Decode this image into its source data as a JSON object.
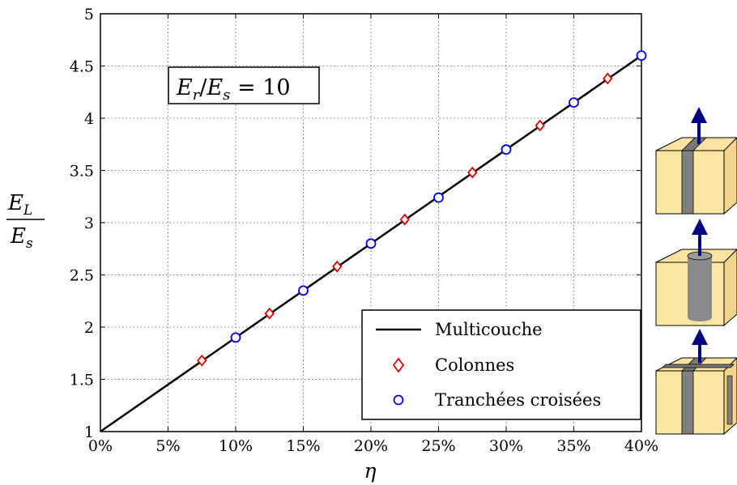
{
  "chart_data": {
    "type": "line",
    "x_tick_labels": [
      "0%",
      "5%",
      "10%",
      "15%",
      "20%",
      "25%",
      "30%",
      "35%",
      "40%"
    ],
    "x_ticks": [
      0,
      5,
      10,
      15,
      20,
      25,
      30,
      35,
      40
    ],
    "y_tick_labels": [
      "1",
      "1.5",
      "2",
      "2.5",
      "3",
      "3.5",
      "4",
      "4.5",
      "5"
    ],
    "y_ticks": [
      1,
      1.5,
      2,
      2.5,
      3,
      3.5,
      4,
      4.5,
      5
    ],
    "xlim": [
      0,
      40
    ],
    "ylim": [
      1,
      5
    ],
    "grid": true,
    "xlabel": "η",
    "ylabel": {
      "numerator": "E",
      "numerator_sub": "L",
      "denominator": "E",
      "denominator_sub": "s"
    },
    "annotation": {
      "text_left": "E",
      "sub_r": "r",
      "slash": "/",
      "text_E": "E",
      "sub_s": "s",
      "eq": " = 10"
    },
    "legend_position": "bottom-right",
    "series": [
      {
        "name": "Multicouche",
        "marker": "line",
        "color": "#000000",
        "x": [
          0,
          40
        ],
        "y": [
          1.0,
          4.6
        ]
      },
      {
        "name": "Colonnes",
        "marker": "diamond",
        "color": "#dd0000",
        "x": [
          7.5,
          12.5,
          17.5,
          22.5,
          27.5,
          32.5,
          37.5
        ],
        "y": [
          1.68,
          2.13,
          2.58,
          3.03,
          3.48,
          3.93,
          4.38
        ]
      },
      {
        "name": "Tranchées croisées",
        "marker": "circle",
        "color": "#0000ee",
        "x": [
          10,
          15,
          20,
          25,
          30,
          35,
          40
        ],
        "y": [
          1.9,
          2.35,
          2.8,
          3.24,
          3.7,
          4.15,
          4.6
        ]
      }
    ]
  },
  "illustrations": [
    {
      "name": "slab-cell-icon"
    },
    {
      "name": "column-cell-icon"
    },
    {
      "name": "crossed-trench-cell-icon"
    }
  ]
}
